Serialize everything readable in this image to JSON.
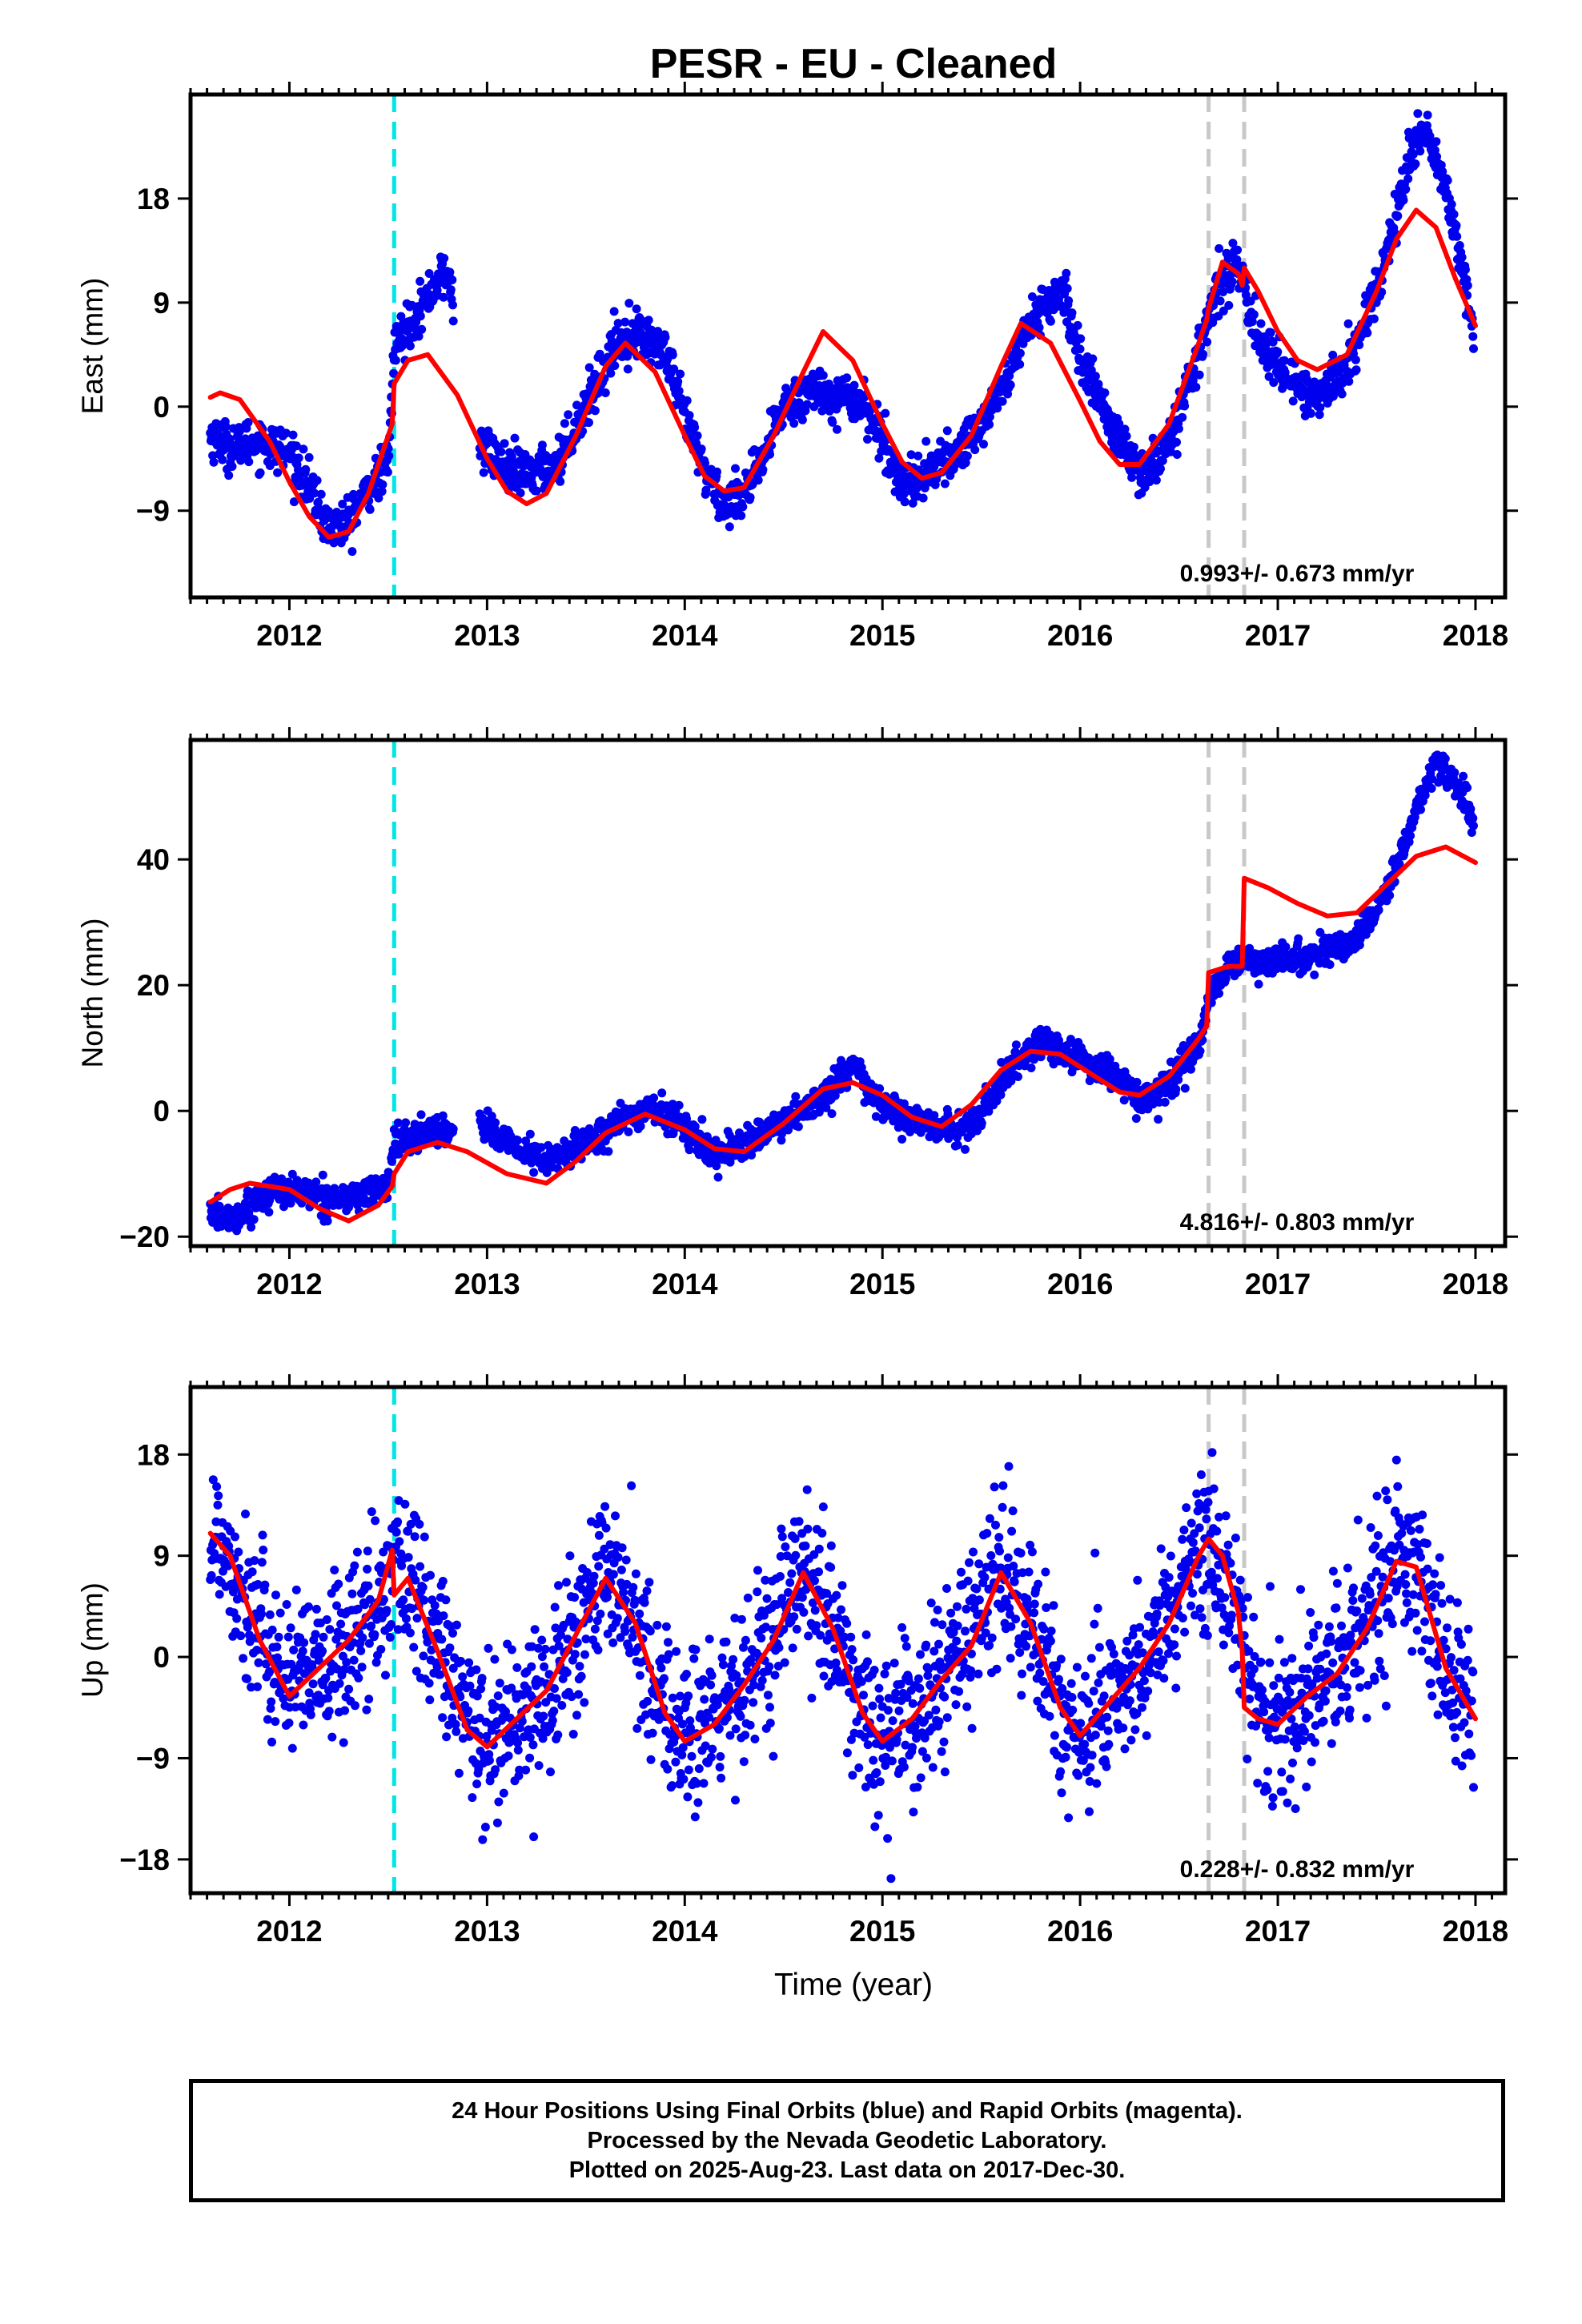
{
  "title": "PESR  - EU - Cleaned",
  "xlabel": "Time (year)",
  "footer": {
    "line1": "24 Hour Positions Using Final Orbits (blue) and Rapid Orbits (magenta).",
    "line2": "Processed by the Nevada Geodetic Laboratory.",
    "line3": "Plotted on 2025-Aug-23. Last data on 2017-Dec-30."
  },
  "colors": {
    "data_points": "#0000ee",
    "model_fit": "#ff0000",
    "antenna_change": "#00e5e5",
    "equipment_change": "#c8c8c8"
  },
  "chart_data": [
    {
      "type": "scatter",
      "component": "East",
      "ylabel": "East (mm)",
      "xlim": [
        2011.5,
        2018.15
      ],
      "ylim": [
        -16.5,
        27
      ],
      "yticks": [
        -9,
        0,
        9,
        18
      ],
      "xticks": [
        2012,
        2013,
        2014,
        2015,
        2016,
        2017,
        2018
      ],
      "rate_label": "0.993+/- 0.673 mm/yr",
      "vertical_lines": [
        {
          "x": 2012.53,
          "kind": "antenna_change"
        },
        {
          "x": 2016.65,
          "kind": "equipment_change"
        },
        {
          "x": 2016.83,
          "kind": "equipment_change"
        }
      ],
      "gaps": [
        [
          2012.83,
          2012.96
        ]
      ],
      "model": {
        "name": "model fit",
        "x": [
          2011.6,
          2011.65,
          2011.75,
          2011.9,
          2012.0,
          2012.1,
          2012.2,
          2012.3,
          2012.4,
          2012.5,
          2012.52,
          2012.53,
          2012.6,
          2012.7,
          2012.85,
          2013.0,
          2013.1,
          2013.2,
          2013.3,
          2013.45,
          2013.6,
          2013.7,
          2013.85,
          2014.0,
          2014.1,
          2014.2,
          2014.3,
          2014.45,
          2014.6,
          2014.7,
          2014.85,
          2015.0,
          2015.1,
          2015.2,
          2015.3,
          2015.45,
          2015.6,
          2015.7,
          2015.85,
          2016.0,
          2016.1,
          2016.2,
          2016.3,
          2016.45,
          2016.6,
          2016.64,
          2016.65,
          2016.72,
          2016.8,
          2016.82,
          2016.83,
          2016.9,
          2017.0,
          2017.1,
          2017.2,
          2017.35,
          2017.5,
          2017.6,
          2017.7,
          2017.8,
          2017.9,
          2018.0
        ],
        "y": [
          0.8,
          1.2,
          0.6,
          -3.0,
          -6.5,
          -9.5,
          -11.3,
          -10.8,
          -7.5,
          -2.5,
          -1.5,
          2.0,
          4.0,
          4.5,
          1.0,
          -4.5,
          -7.3,
          -8.4,
          -7.5,
          -2.5,
          3.5,
          5.5,
          3.0,
          -2.5,
          -6.0,
          -7.3,
          -7.0,
          -2.5,
          3.0,
          6.5,
          4.0,
          -1.5,
          -4.8,
          -6.2,
          -5.7,
          -2.5,
          3.5,
          7.2,
          5.5,
          0.5,
          -3.0,
          -5.0,
          -5.0,
          -1.5,
          5.5,
          7.5,
          8.5,
          12.5,
          11.5,
          10.5,
          12.0,
          10.0,
          6.5,
          4.0,
          3.2,
          4.5,
          10.0,
          14.5,
          17.0,
          15.5,
          11.0,
          7.0
        ]
      },
      "points_model": {
        "name": "daily positions",
        "x_start": 2011.6,
        "x_end": 2017.99,
        "count": 2200,
        "smooth": [
          2011.6,
          2011.7,
          2011.85,
          2012.0,
          2012.1,
          2012.2,
          2012.3,
          2012.4,
          2012.5,
          2012.53,
          2012.6,
          2012.7,
          2012.75,
          2012.8,
          2012.96,
          2013.1,
          2013.2,
          2013.35,
          2013.5,
          2013.65,
          2013.75,
          2013.9,
          2014.0,
          2014.1,
          2014.2,
          2014.35,
          2014.5,
          2014.65,
          2014.75,
          2014.9,
          2015.0,
          2015.1,
          2015.2,
          2015.35,
          2015.5,
          2015.65,
          2015.75,
          2015.9,
          2016.0,
          2016.1,
          2016.2,
          2016.3,
          2016.45,
          2016.6,
          2016.7,
          2016.8,
          2016.9,
          2017.0,
          2017.1,
          2017.2,
          2017.35,
          2017.5,
          2017.6,
          2017.68,
          2017.75,
          2017.85,
          2017.95,
          2017.99
        ],
        "smooth_y": [
          -2.5,
          -3.5,
          -3.0,
          -4.0,
          -7.0,
          -10.5,
          -10.0,
          -7.0,
          -5.0,
          5.0,
          7.0,
          9.5,
          11.0,
          11.5,
          -3.0,
          -5.5,
          -6.0,
          -5.0,
          0.0,
          5.5,
          6.5,
          4.5,
          -1.0,
          -5.5,
          -8.5,
          -6.5,
          0.0,
          1.5,
          1.0,
          0.5,
          -3.0,
          -6.5,
          -6.0,
          -4.5,
          -1.5,
          3.0,
          7.5,
          10.0,
          4.5,
          0.5,
          -3.0,
          -6.0,
          -3.0,
          4.5,
          11.0,
          12.0,
          6.0,
          3.5,
          2.0,
          0.5,
          3.5,
          10.0,
          16.5,
          22.5,
          24.5,
          18.5,
          11.0,
          5.0
        ],
        "scatter_sd": 1.0
      }
    },
    {
      "type": "scatter",
      "component": "North",
      "ylabel": "North (mm)",
      "xlim": [
        2011.5,
        2018.15
      ],
      "ylim": [
        -21.5,
        59
      ],
      "yticks": [
        -20,
        0,
        20,
        40
      ],
      "xticks": [
        2012,
        2013,
        2014,
        2015,
        2016,
        2017,
        2018
      ],
      "rate_label": "4.816+/- 0.803 mm/yr",
      "vertical_lines": [
        {
          "x": 2012.53,
          "kind": "antenna_change"
        },
        {
          "x": 2016.65,
          "kind": "equipment_change"
        },
        {
          "x": 2016.83,
          "kind": "equipment_change"
        }
      ],
      "gaps": [
        [
          2012.83,
          2012.96
        ]
      ],
      "model": {
        "name": "model fit",
        "x": [
          2011.6,
          2011.7,
          2011.8,
          2012.0,
          2012.15,
          2012.3,
          2012.45,
          2012.52,
          2012.53,
          2012.6,
          2012.75,
          2012.9,
          2013.1,
          2013.3,
          2013.45,
          2013.6,
          2013.8,
          2014.0,
          2014.15,
          2014.3,
          2014.5,
          2014.7,
          2014.85,
          2015.0,
          2015.15,
          2015.3,
          2015.45,
          2015.6,
          2015.75,
          2015.9,
          2016.05,
          2016.2,
          2016.3,
          2016.45,
          2016.6,
          2016.64,
          2016.65,
          2016.7,
          2016.75,
          2016.82,
          2016.83,
          2016.95,
          2017.1,
          2017.25,
          2017.4,
          2017.55,
          2017.7,
          2017.85,
          2018.0
        ],
        "y": [
          -14.5,
          -12.5,
          -11.5,
          -12.5,
          -15.5,
          -17.5,
          -15.0,
          -12.0,
          -10.0,
          -6.5,
          -5.0,
          -6.5,
          -10.0,
          -11.5,
          -8.0,
          -3.5,
          -0.5,
          -3.0,
          -6.0,
          -6.5,
          -2.0,
          3.5,
          4.5,
          2.5,
          -1.0,
          -2.5,
          1.0,
          6.5,
          9.5,
          9.0,
          6.0,
          3.0,
          2.5,
          5.5,
          11.5,
          13.5,
          22.0,
          22.5,
          23.0,
          23.0,
          37.0,
          35.5,
          33.0,
          31.0,
          31.5,
          36.0,
          40.5,
          42.0,
          39.5
        ]
      },
      "points_model": {
        "name": "daily positions",
        "x_start": 2011.6,
        "x_end": 2017.99,
        "count": 2200,
        "smooth": [
          2011.6,
          2011.7,
          2011.8,
          2011.9,
          2012.0,
          2012.15,
          2012.3,
          2012.4,
          2012.5,
          2012.53,
          2012.6,
          2012.75,
          2012.8,
          2012.96,
          2013.05,
          2013.15,
          2013.3,
          2013.45,
          2013.6,
          2013.75,
          2013.85,
          2014.0,
          2014.15,
          2014.3,
          2014.45,
          2014.6,
          2014.75,
          2014.85,
          2014.95,
          2015.1,
          2015.25,
          2015.4,
          2015.55,
          2015.7,
          2015.8,
          2016.0,
          2016.15,
          2016.3,
          2016.45,
          2016.6,
          2016.65,
          2016.75,
          2016.83,
          2016.9,
          2017.0,
          2017.15,
          2017.3,
          2017.4,
          2017.5,
          2017.6,
          2017.7,
          2017.8,
          2017.95,
          2017.99
        ],
        "smooth_y": [
          -16.0,
          -17.5,
          -15.0,
          -13.0,
          -12.5,
          -13.5,
          -14.0,
          -13.0,
          -12.0,
          -5.0,
          -4.5,
          -3.0,
          -3.5,
          -1.0,
          -4.0,
          -6.0,
          -8.0,
          -6.0,
          -3.0,
          -0.5,
          0.5,
          -2.5,
          -7.0,
          -5.0,
          -3.0,
          0.0,
          3.5,
          7.5,
          2.0,
          -1.0,
          -2.5,
          -3.5,
          2.0,
          8.5,
          11.0,
          8.0,
          6.5,
          1.5,
          4.0,
          10.5,
          18.0,
          23.0,
          24.0,
          23.0,
          24.0,
          24.5,
          26.0,
          27.5,
          32.0,
          38.5,
          48.0,
          55.5,
          50.0,
          45.0
        ],
        "scatter_sd": 1.2
      }
    },
    {
      "type": "scatter",
      "component": "Up",
      "ylabel": "Up (mm)",
      "xlim": [
        2011.5,
        2018.15
      ],
      "ylim": [
        -21,
        24
      ],
      "yticks": [
        -18,
        -9,
        0,
        9,
        18
      ],
      "xticks": [
        2012,
        2013,
        2014,
        2015,
        2016,
        2017,
        2018
      ],
      "rate_label": "0.228+/- 0.832 mm/yr",
      "vertical_lines": [
        {
          "x": 2012.53,
          "kind": "antenna_change"
        },
        {
          "x": 2016.65,
          "kind": "equipment_change"
        },
        {
          "x": 2016.83,
          "kind": "equipment_change"
        }
      ],
      "gaps": [],
      "model": {
        "name": "model fit",
        "x": [
          2011.6,
          2011.7,
          2011.85,
          2012.0,
          2012.15,
          2012.3,
          2012.45,
          2012.52,
          2012.53,
          2012.6,
          2012.75,
          2012.9,
          2013.0,
          2013.15,
          2013.3,
          2013.45,
          2013.6,
          2013.75,
          2013.9,
          2014.0,
          2014.15,
          2014.3,
          2014.45,
          2014.6,
          2014.75,
          2014.9,
          2015.0,
          2015.15,
          2015.3,
          2015.45,
          2015.6,
          2015.75,
          2015.9,
          2016.0,
          2016.15,
          2016.3,
          2016.45,
          2016.6,
          2016.65,
          2016.72,
          2016.8,
          2016.82,
          2016.83,
          2016.9,
          2017.0,
          2017.15,
          2017.3,
          2017.45,
          2017.6,
          2017.7,
          2017.85,
          2018.0
        ],
        "y": [
          11.0,
          9.0,
          1.5,
          -3.5,
          -1.0,
          1.5,
          5.0,
          9.5,
          5.5,
          7.0,
          0.5,
          -6.5,
          -8.0,
          -5.5,
          -3.0,
          2.0,
          7.0,
          3.0,
          -5.0,
          -7.5,
          -6.0,
          -2.5,
          1.5,
          7.5,
          2.5,
          -5.0,
          -7.5,
          -5.5,
          -2.0,
          1.0,
          7.5,
          3.0,
          -4.5,
          -7.0,
          -4.0,
          -1.0,
          3.0,
          9.0,
          10.5,
          9.0,
          4.0,
          0.5,
          -4.5,
          -5.5,
          -6.0,
          -3.5,
          -1.5,
          2.5,
          8.5,
          8.0,
          -1.0,
          -5.5
        ]
      },
      "points_model": {
        "name": "daily positions",
        "x_start": 2011.6,
        "x_end": 2017.99,
        "count": 2200,
        "smooth": [
          2011.6,
          2011.7,
          2011.85,
          2012.0,
          2012.15,
          2012.3,
          2012.45,
          2012.53,
          2012.6,
          2012.75,
          2012.9,
          2013.0,
          2013.15,
          2013.3,
          2013.45,
          2013.6,
          2013.75,
          2013.9,
          2014.0,
          2014.15,
          2014.3,
          2014.45,
          2014.6,
          2014.75,
          2014.9,
          2015.0,
          2015.15,
          2015.3,
          2015.45,
          2015.6,
          2015.75,
          2015.9,
          2016.0,
          2016.15,
          2016.3,
          2016.45,
          2016.6,
          2016.7,
          2016.8,
          2016.9,
          2017.0,
          2017.15,
          2017.3,
          2017.45,
          2017.6,
          2017.7,
          2017.85,
          2017.99
        ],
        "smooth_y": [
          11.0,
          9.0,
          2.0,
          -2.0,
          -2.0,
          1.5,
          4.0,
          9.0,
          7.0,
          1.0,
          -6.0,
          -7.0,
          -5.5,
          -3.0,
          2.0,
          7.5,
          3.0,
          -5.0,
          -7.0,
          -5.5,
          -2.5,
          1.5,
          7.5,
          2.5,
          -5.0,
          -8.0,
          -5.5,
          -2.0,
          1.5,
          8.0,
          3.5,
          -4.5,
          -7.0,
          -4.0,
          -1.0,
          3.5,
          9.5,
          9.5,
          4.0,
          -5.5,
          -5.5,
          -3.5,
          -1.0,
          3.0,
          9.0,
          8.0,
          -1.0,
          -6.0
        ],
        "scatter_sd": 3.6
      }
    }
  ]
}
